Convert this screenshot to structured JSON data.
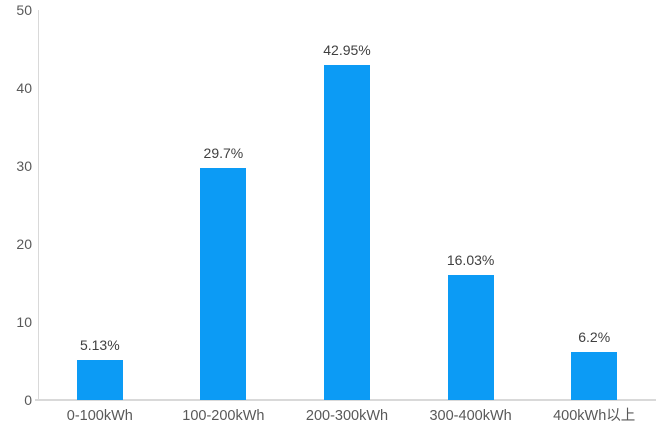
{
  "chart_data": {
    "type": "bar",
    "title": "",
    "xlabel": "",
    "ylabel": "",
    "categories": [
      "0-100kWh",
      "100-200kWh",
      "200-300kWh",
      "300-400kWh",
      "400kWh以上"
    ],
    "values": [
      5.13,
      29.7,
      42.95,
      16.03,
      6.2
    ],
    "data_labels": [
      "5.13%",
      "29.7%",
      "42.95%",
      "16.03%",
      "6.2%"
    ],
    "ylim": [
      0,
      50
    ],
    "y_ticks": [
      0,
      10,
      20,
      30,
      40,
      50
    ],
    "grid": false,
    "legend": false,
    "colors": {
      "bar": "#0c9bf5",
      "axis_line": "#d9d9d9",
      "data_label": "#404040",
      "tick_label": "#595959"
    }
  }
}
